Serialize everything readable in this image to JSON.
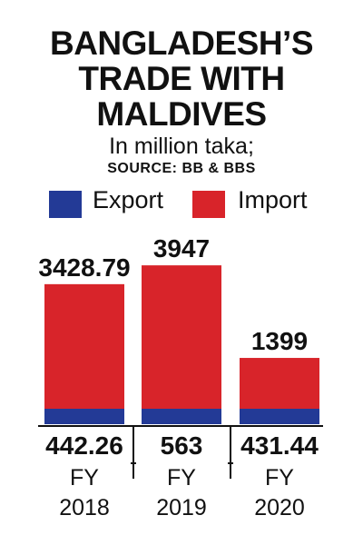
{
  "title_lines": [
    "BANGLADESH’S",
    "TRADE WITH",
    "MALDIVES"
  ],
  "subtitle": "In million taka;",
  "source": "SOURCE: BB & BBS",
  "colors": {
    "export": "#233a96",
    "import": "#d8242a",
    "axis": "#111111"
  },
  "chart_data": {
    "type": "bar",
    "stacked": true,
    "title": "BANGLADESH’S TRADE WITH MALDIVES",
    "subtitle": "In million taka; SOURCE: BB & BBS",
    "categories": [
      "FY 2018",
      "FY 2019",
      "FY 2020"
    ],
    "category_lines": [
      [
        "FY",
        "2018"
      ],
      [
        "FY",
        "2019"
      ],
      [
        "FY",
        "2020"
      ]
    ],
    "series": [
      {
        "name": "Export",
        "values": [
          442.26,
          563,
          431.44
        ],
        "labels": [
          "442.26",
          "563",
          "431.44"
        ]
      },
      {
        "name": "Import",
        "values": [
          3428.79,
          3947,
          1399
        ],
        "labels": [
          "3428.79",
          "3947",
          "1399"
        ]
      }
    ],
    "legend": "top",
    "grid": false
  }
}
